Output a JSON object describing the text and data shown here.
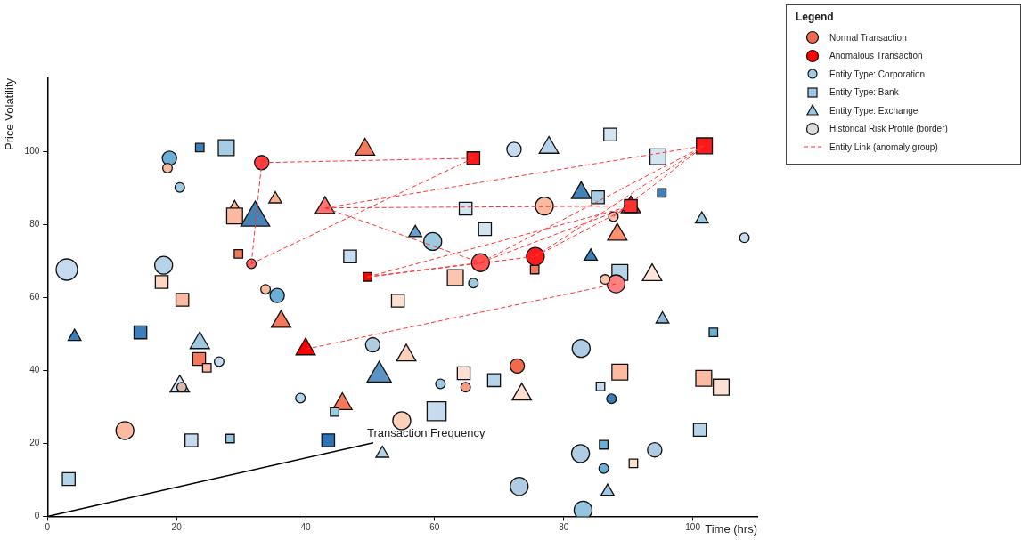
{
  "chart_data": {
    "type": "scatter",
    "xlabel": "Time (hrs)",
    "ylabel": "Price Volatility",
    "legend_title": "Legend",
    "legend": "top right",
    "grid": false,
    "xlim": [
      0,
      110
    ],
    "xticks": [
      0,
      20,
      40,
      60,
      80,
      100
    ],
    "ylim": [
      0,
      120
    ],
    "yticks": [
      0,
      20,
      40,
      60,
      80,
      100
    ],
    "annotations": [
      "Transaction Frequency"
    ],
    "series": [
      {
        "name": "Normal Transaction",
        "marker": "circle",
        "color": "#f26a4c"
      },
      {
        "name": "Anomalous Transaction",
        "marker": "circle",
        "color": "#ff0000"
      },
      {
        "name": "Entity Type: Corporation",
        "marker": "circle",
        "color": "#9ecae1",
        "x": [
          3.0,
          18.9,
          18.6,
          20.5,
          33.2,
          31.6,
          18.0,
          33.8,
          35.6,
          26.6,
          20.8,
          12.0,
          39.2,
          50.4,
          54.9,
          60.9,
          64.8,
          59.7,
          67.1,
          66.0,
          72.3,
          77.0,
          75.6,
          87.7,
          88.1,
          86.4,
          108.0,
          72.8,
          82.7,
          87.4,
          82.6,
          86.2,
          94.1,
          73.1,
          83.0
        ],
        "values": [
          67.6,
          98.1,
          95.4,
          90.1,
          96.9,
          69.2,
          68.8,
          62.2,
          60.5,
          42.4,
          35.4,
          23.5,
          32.4,
          47.0,
          26.2,
          36.3,
          35.4,
          75.3,
          69.5,
          63.9,
          100.5,
          85.0,
          71.2,
          82.1,
          63.7,
          64.9,
          76.3,
          41.2,
          46.0,
          32.2,
          17.2,
          13.1,
          18.2,
          8.2,
          1.7
        ],
        "sizes": [
          1,
          0.45,
          0.2,
          0.2,
          0.45,
          0.2,
          0.7,
          0.2,
          0.45,
          0.2,
          0.2,
          0.7,
          0.2,
          0.45,
          0.7,
          0.2,
          0.2,
          0.7,
          0.7,
          0.2,
          0.45,
          0.7,
          0.7,
          0.2,
          0.7,
          0.2,
          0.2,
          0.45,
          0.7,
          0.2,
          0.7,
          0.2,
          0.45,
          0.7,
          0.7
        ],
        "colors": [
          "#c6dbef",
          "#6baed6",
          "#fcbba1",
          "#9ecae1",
          "#ff4040",
          "#ff6b6b",
          "#b5d4e9",
          "#fcbba1",
          "#6baed6",
          "#c6dbef",
          "#d9b8b0",
          "#fcbba1",
          "#b5d4e9",
          "#b0cbe4",
          "#fdd0bc",
          "#9ecae1",
          "#fb9a80",
          "#9ecae1",
          "#ff5555",
          "#9ecae1",
          "#c6dbef",
          "#fcbba1",
          "#ff1a1a",
          "#fcc5b0",
          "#ff8080",
          "#fcc5b0",
          "#c6dbef",
          "#f26a4c",
          "#b0cbe4",
          "#3a7fba",
          "#b0cbe4",
          "#6baed6",
          "#b0cbe4",
          "#b0cbe4",
          "#94c4df"
        ]
      },
      {
        "name": "Entity Type: Bank",
        "marker": "square",
        "color": "#9ecae1",
        "x": [
          23.6,
          27.7,
          29.0,
          29.6,
          17.7,
          20.9,
          14.4,
          23.5,
          24.7,
          3.3,
          22.3,
          28.3,
          44.5,
          43.5,
          46.9,
          49.6,
          54.3,
          60.3,
          64.5,
          69.2,
          63.2,
          64.8,
          67.8,
          66.0,
          87.2,
          94.6,
          85.3,
          95.2,
          90.4,
          101.8,
          75.5,
          88.7,
          88.7,
          85.7,
          86.2,
          90.8,
          103.2,
          101.7,
          104.4,
          101.1
        ],
        "values": [
          101.0,
          101.0,
          82.3,
          71.9,
          64.2,
          59.3,
          50.4,
          43.1,
          40.7,
          10.2,
          20.8,
          21.3,
          28.6,
          20.8,
          71.2,
          65.6,
          59.1,
          28.8,
          39.2,
          37.3,
          65.4,
          84.3,
          78.7,
          98.1,
          104.6,
          98.5,
          87.4,
          88.6,
          85.0,
          101.5,
          67.6,
          66.8,
          39.5,
          35.6,
          19.6,
          14.5,
          50.4,
          37.8,
          35.4,
          23.7
        ],
        "sizes": [
          0.2,
          0.7,
          0.7,
          0.2,
          0.45,
          0.45,
          0.45,
          0.45,
          0.2,
          0.45,
          0.45,
          0.2,
          0.2,
          0.45,
          0.45,
          0.2,
          0.45,
          1,
          0.45,
          0.45,
          0.7,
          0.45,
          0.45,
          0.45,
          0.45,
          0.7,
          0.45,
          0.2,
          0.45,
          0.7,
          0.2,
          0.7,
          0.7,
          0.2,
          0.2,
          0.2,
          0.2,
          0.7,
          0.7,
          0.45
        ],
        "colors": [
          "#3a7fba",
          "#a6cde3",
          "#fcbba1",
          "#f4795b",
          "#fdd5c3",
          "#fcbba1",
          "#3a7fba",
          "#f4795b",
          "#fcbba1",
          "#b5d4e9",
          "#c6dbef",
          "#94c4df",
          "#9ecae1",
          "#2f73b5",
          "#c6dbef",
          "#ff0000",
          "#fde0d2",
          "#c6dbef",
          "#fde0d2",
          "#b5d4e9",
          "#fcc5b0",
          "#d3e5f1",
          "#d3e5f1",
          "#ff1a1a",
          "#d3e5f1",
          "#d3e5f1",
          "#a6cde3",
          "#3a7fba",
          "#ff3030",
          "#ff1a1a",
          "#f4795b",
          "#b5d4e9",
          "#fcbba1",
          "#c6dbef",
          "#6baed6",
          "#fde0d2",
          "#6baed6",
          "#fcbba1",
          "#fde0d2",
          "#b5d4e9"
        ]
      },
      {
        "name": "Entity Type: Exchange",
        "marker": "triangle",
        "color": "#9ecae1",
        "x": [
          4.2,
          23.6,
          20.5,
          29.0,
          32.2,
          35.3,
          36.2,
          45.7,
          40.0,
          49.2,
          43.0,
          57.0,
          51.4,
          55.6,
          51.9,
          77.7,
          82.7,
          90.4,
          88.3,
          84.2,
          93.7,
          101.4,
          95.3,
          73.5,
          86.8
        ],
        "values": [
          49.2,
          47.5,
          35.6,
          84.5,
          81.8,
          86.9,
          53.3,
          30.8,
          45.8,
          100.5,
          84.5,
          77.7,
          38.7,
          44.1,
          17.2,
          101.0,
          88.6,
          84.7,
          77.2,
          71.2,
          66.1,
          81.4,
          54.0,
          33.4,
          6.8
        ],
        "sizes": [
          0.2,
          0.45,
          0.45,
          0.2,
          1,
          0.2,
          0.45,
          0.45,
          0.45,
          0.45,
          0.45,
          0.2,
          0.7,
          0.45,
          0.2,
          0.45,
          0.45,
          0.45,
          0.45,
          0.2,
          0.45,
          0.2,
          0.2,
          0.45,
          0.2
        ],
        "colors": [
          "#3a7fba",
          "#9ecae1",
          "#d3e5f1",
          "#fcbba1",
          "#4682b4",
          "#fcad95",
          "#f4795b",
          "#f4795b",
          "#ff0000",
          "#f4795b",
          "#ff7070",
          "#6a9ecf",
          "#5b93c5",
          "#fdd0bc",
          "#b5d4e9",
          "#b5d4e9",
          "#4682b4",
          "#ff2020",
          "#fb9070",
          "#3a7fba",
          "#fde5dc",
          "#9ecae1",
          "#8ab6d8",
          "#fde0d2",
          "#9ecae1"
        ]
      },
      {
        "name": "Historical Risk Profile (border)",
        "marker": "circle",
        "color": "#dddddd"
      },
      {
        "name": "Entity Link (anomaly group)",
        "type": "line",
        "line_style": "dashed",
        "marker": "none",
        "color": "#ff3333",
        "x": [
          33.2,
          66.0
        ],
        "values": [
          96.9,
          98.1
        ]
      },
      {
        "type": "line",
        "line_style": "dashed",
        "marker": "none",
        "color": "#ff3333",
        "x": [
          31.6,
          33.2
        ],
        "values": [
          69.2,
          96.9
        ]
      },
      {
        "type": "line",
        "line_style": "dashed",
        "marker": "none",
        "color": "#ff3333",
        "x": [
          31.6,
          66.0
        ],
        "values": [
          69.2,
          98.1
        ]
      },
      {
        "type": "line",
        "line_style": "dashed",
        "marker": "none",
        "color": "#ff3333",
        "x": [
          43.0,
          101.8
        ],
        "values": [
          84.5,
          101.5
        ]
      },
      {
        "type": "line",
        "line_style": "dashed",
        "marker": "none",
        "color": "#ff3333",
        "x": [
          43.0,
          90.4
        ],
        "values": [
          84.5,
          85.0
        ]
      },
      {
        "type": "line",
        "line_style": "dashed",
        "marker": "none",
        "color": "#ff3333",
        "x": [
          43.0,
          67.1
        ],
        "values": [
          84.5,
          69.5
        ]
      },
      {
        "type": "line",
        "line_style": "dashed",
        "marker": "none",
        "color": "#ff3333",
        "x": [
          49.6,
          67.1
        ],
        "values": [
          65.6,
          69.5
        ]
      },
      {
        "type": "line",
        "line_style": "dashed",
        "marker": "none",
        "color": "#ff3333",
        "x": [
          49.6,
          90.4
        ],
        "values": [
          65.6,
          85.0
        ]
      },
      {
        "type": "line",
        "line_style": "dashed",
        "marker": "none",
        "color": "#ff3333",
        "x": [
          49.6,
          75.6
        ],
        "values": [
          65.6,
          71.2
        ]
      },
      {
        "type": "line",
        "line_style": "dashed",
        "marker": "none",
        "color": "#ff3333",
        "x": [
          67.1,
          101.8
        ],
        "values": [
          69.5,
          101.5
        ]
      },
      {
        "type": "line",
        "line_style": "dashed",
        "marker": "none",
        "color": "#ff3333",
        "x": [
          67.1,
          90.4
        ],
        "values": [
          69.5,
          85.0
        ]
      },
      {
        "type": "line",
        "line_style": "dashed",
        "marker": "none",
        "color": "#ff3333",
        "x": [
          75.6,
          101.8
        ],
        "values": [
          71.2,
          101.5
        ]
      },
      {
        "type": "line",
        "line_style": "dashed",
        "marker": "none",
        "color": "#ff3333",
        "x": [
          75.6,
          90.4
        ],
        "values": [
          71.2,
          85.0
        ]
      },
      {
        "type": "line",
        "line_style": "dashed",
        "marker": "none",
        "color": "#ff3333",
        "x": [
          87.7,
          101.8
        ],
        "values": [
          82.1,
          101.5
        ]
      },
      {
        "type": "line",
        "line_style": "dashed",
        "marker": "none",
        "color": "#ff3333",
        "x": [
          40.0,
          88.1
        ],
        "values": [
          45.8,
          63.7
        ]
      }
    ]
  }
}
